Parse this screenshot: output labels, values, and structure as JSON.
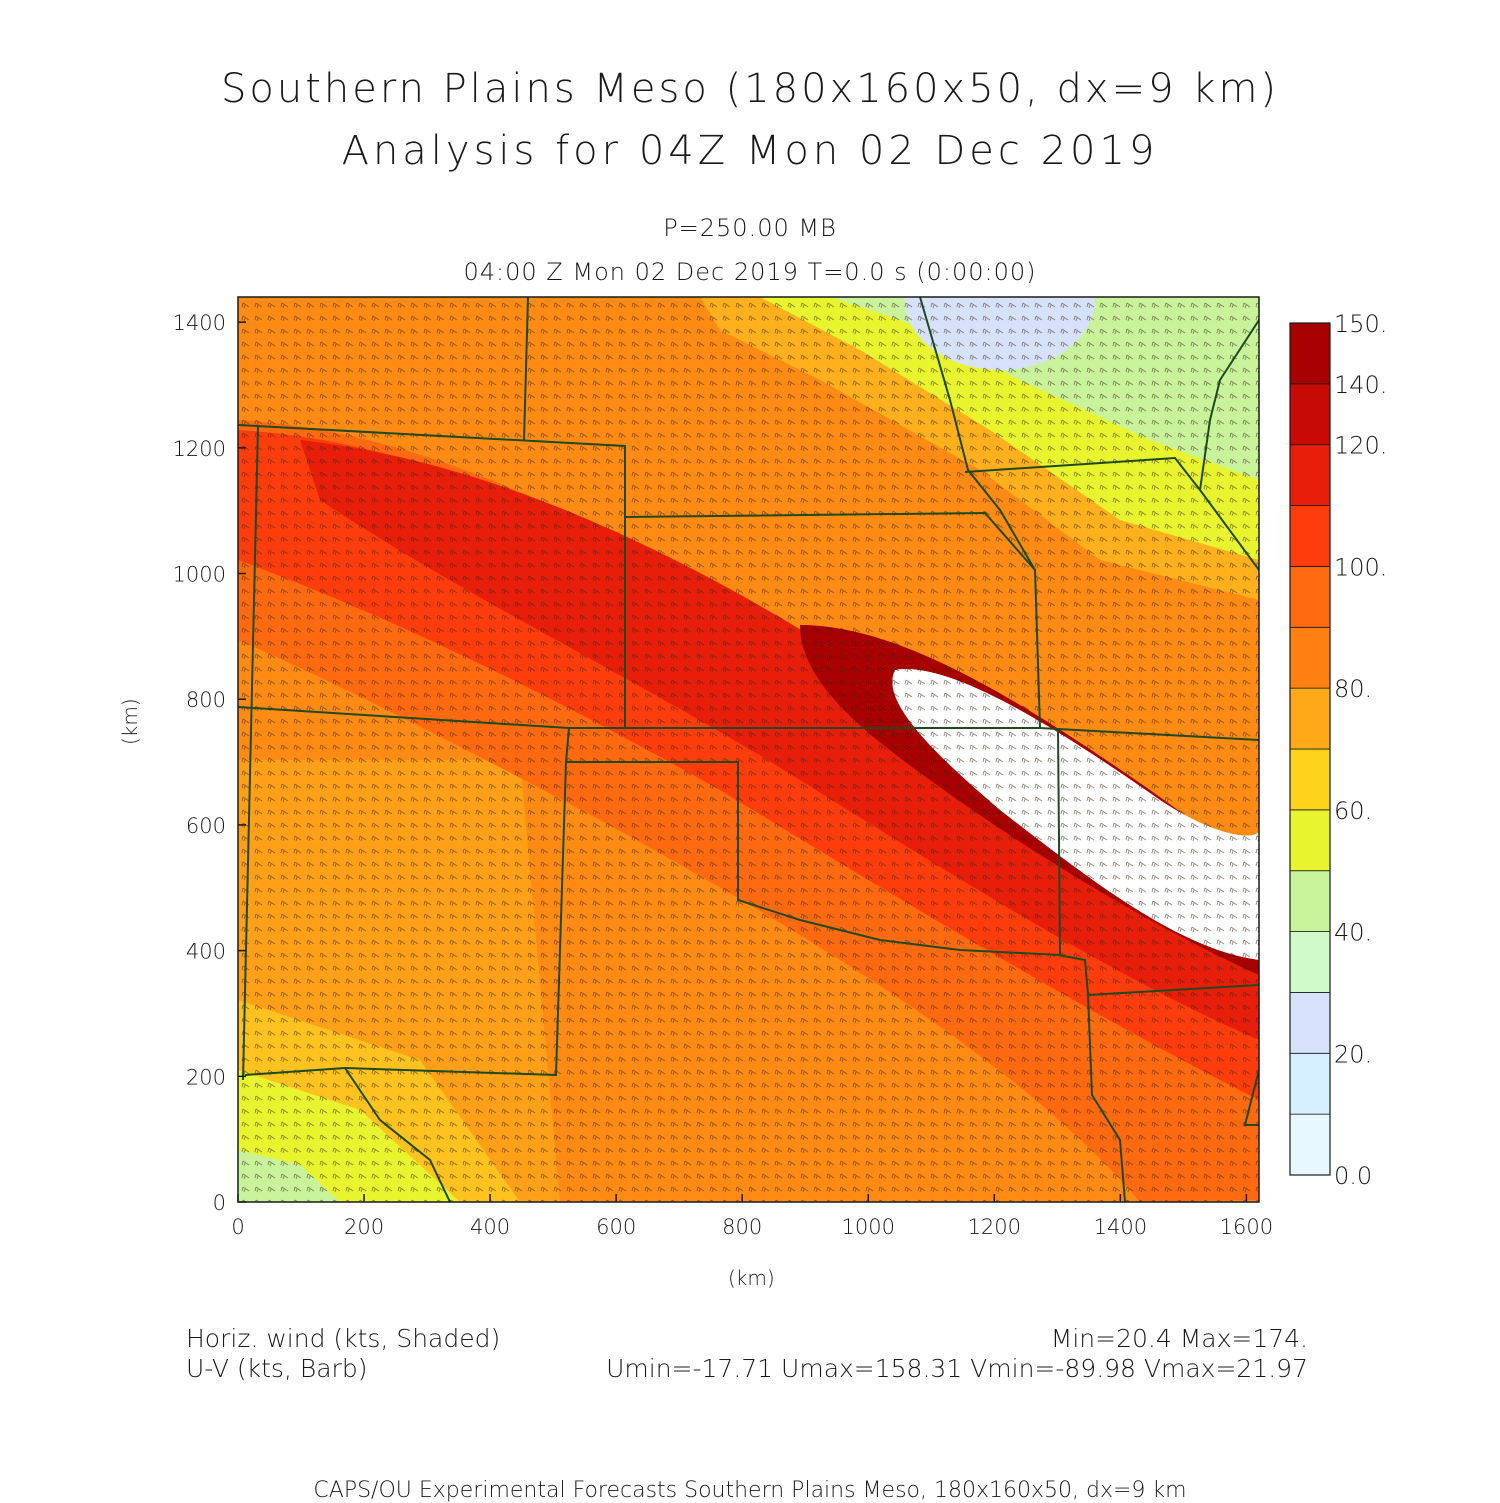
{
  "title": {
    "line1": "Southern Plains Meso (180x160x50, dx=9 km)",
    "line2": "Analysis for 04Z Mon 02 Dec 2019"
  },
  "subtitle": {
    "level": "P=250.00 MB",
    "time": "04:00 Z Mon 02 Dec 2019    T=0.0 s (0:00:00)"
  },
  "axes": {
    "x_ticks": [
      "0",
      "200",
      "400",
      "600",
      "800",
      "1000",
      "1200",
      "1400",
      "1600"
    ],
    "y_ticks": [
      "0",
      "200",
      "400",
      "600",
      "800",
      "1000",
      "1200",
      "1400"
    ],
    "xlabel": "(km)",
    "ylabel": "(km)",
    "xlim": [
      0,
      1620
    ],
    "ylim": [
      0,
      1440
    ]
  },
  "colorbar": {
    "labels": [
      "0.0",
      "20.",
      "40.",
      "60.",
      "80.",
      "100.",
      "120.",
      "140.",
      "150."
    ],
    "colors": [
      "#e8f8ff",
      "#d6f0ff",
      "#d6e2fb",
      "#d0fbc8",
      "#c8f39a",
      "#e8f52e",
      "#ffd21c",
      "#ffa818",
      "#ff8012",
      "#ff6a10",
      "#ff3c0c",
      "#e61e0a",
      "#c80a06",
      "#a80000"
    ]
  },
  "legend": {
    "line1": "Horiz. wind (kts, Shaded)",
    "line2": "U-V (kts, Barb)"
  },
  "stats": {
    "line1": "Min=20.4 Max=174.",
    "line2": "Umin=-17.71 Umax=158.31 Vmin=-89.98 Vmax=21.97"
  },
  "footer": "CAPS/OU Experimental Forecasts  Southern Plains Meso, 180x160x50, dx=9 km"
}
